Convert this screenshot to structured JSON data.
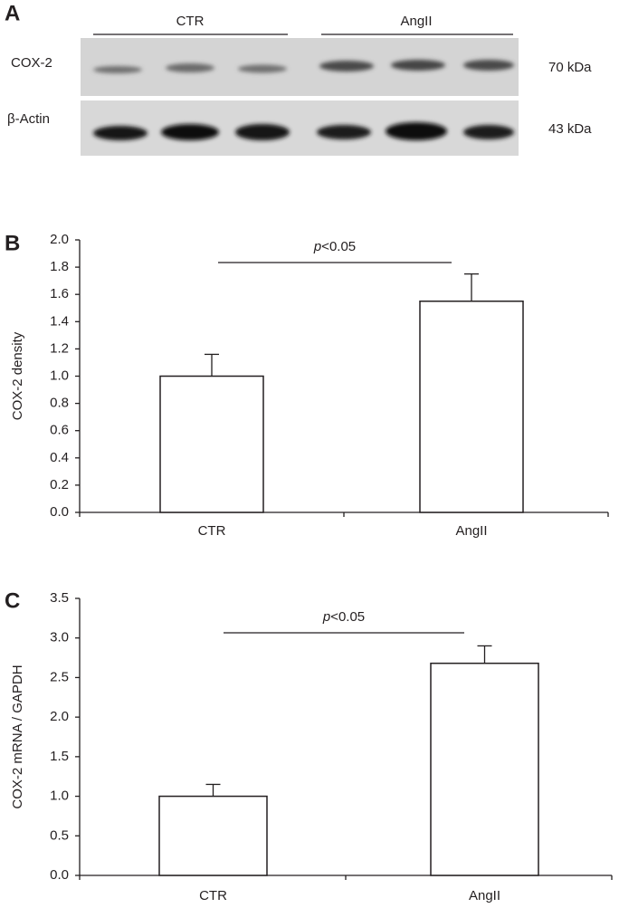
{
  "blot": {
    "panel_label": "A",
    "groups": [
      "CTR",
      "AngII"
    ],
    "rows": [
      {
        "label": "COX-2",
        "size": "70 kDa"
      },
      {
        "label": "β-Actin",
        "size": "43 kDa"
      }
    ]
  },
  "chart_data": [
    {
      "type": "bar",
      "panel_label": "B",
      "ylabel": "COX-2 density",
      "annotation": "p<0.05",
      "categories": [
        "CTR",
        "AngII"
      ],
      "values": [
        1.0,
        1.55
      ],
      "errors": [
        0.16,
        0.2
      ],
      "color": "#ffffff",
      "ylim": [
        0,
        2.0
      ],
      "yticks": [
        {
          "value": 0,
          "label": "0.0"
        },
        {
          "value": 0.2,
          "label": "0.2"
        },
        {
          "value": 0.4,
          "label": "0.4"
        },
        {
          "value": 0.6,
          "label": "0.6"
        },
        {
          "value": 0.8,
          "label": "0.8"
        },
        {
          "value": 1.0,
          "label": "1.0"
        },
        {
          "value": 1.2,
          "label": "1.2"
        },
        {
          "value": 1.4,
          "label": "1.4"
        },
        {
          "value": 1.6,
          "label": "1.6"
        },
        {
          "value": 1.8,
          "label": "1.8"
        },
        {
          "value": 2.0,
          "label": "2.0"
        }
      ]
    },
    {
      "type": "bar",
      "panel_label": "C",
      "ylabel": "COX-2 mRNA / GAPDH",
      "annotation": "p<0.05",
      "categories": [
        "CTR",
        "AngII"
      ],
      "values": [
        1.0,
        2.68
      ],
      "errors": [
        0.15,
        0.22
      ],
      "color": "#ffffff",
      "ylim": [
        0,
        3.5
      ],
      "yticks": [
        {
          "value": 0,
          "label": "0.0"
        },
        {
          "value": 0.5,
          "label": "0.5"
        },
        {
          "value": 1.0,
          "label": "1.0"
        },
        {
          "value": 1.5,
          "label": "1.5"
        },
        {
          "value": 2.0,
          "label": "2.0"
        },
        {
          "value": 2.5,
          "label": "2.5"
        },
        {
          "value": 3.0,
          "label": "3.0"
        },
        {
          "value": 3.5,
          "label": "3.5"
        }
      ]
    }
  ]
}
